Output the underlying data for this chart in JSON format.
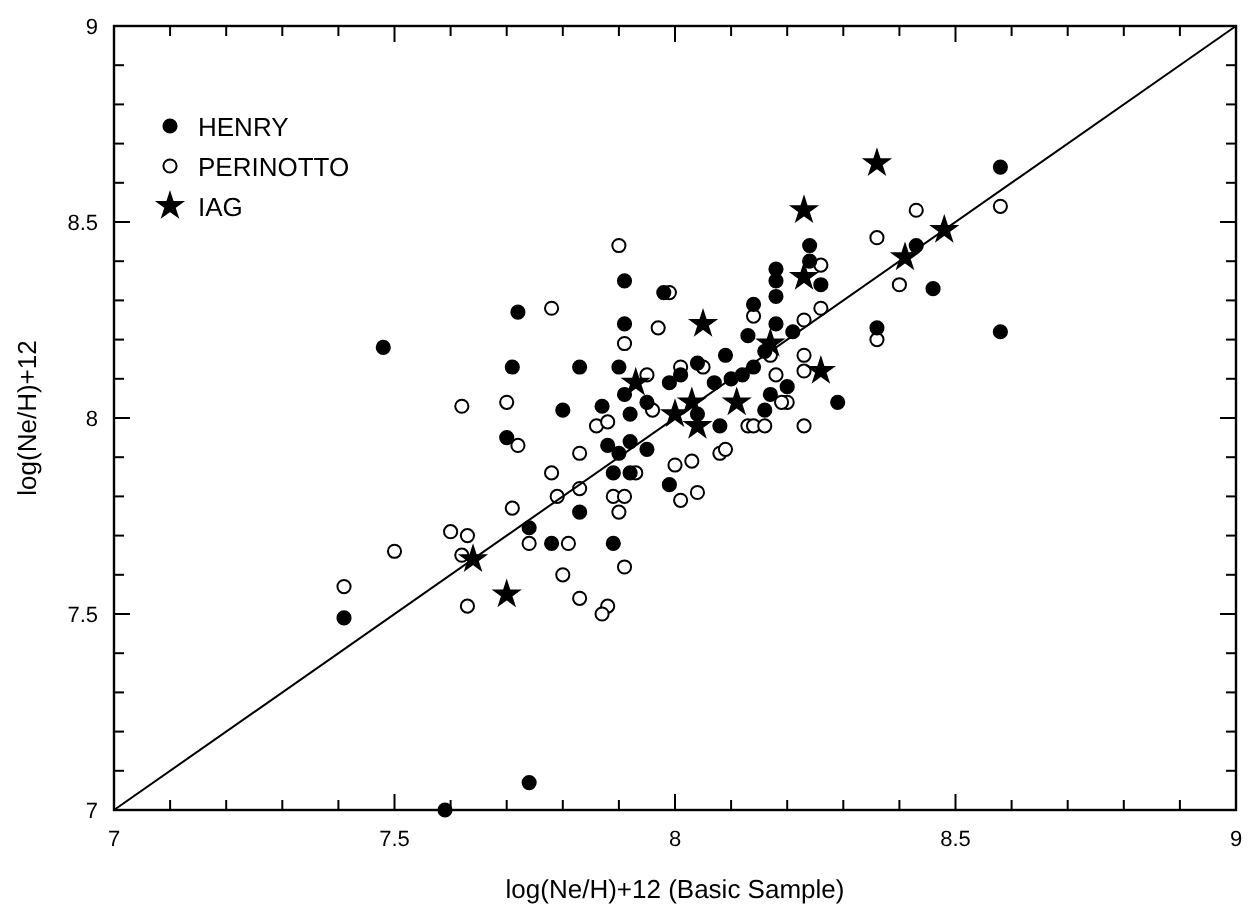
{
  "chart_data": {
    "type": "scatter",
    "xlabel": "log(Ne/H)+12 (Basic Sample)",
    "ylabel": "log(Ne/H)+12",
    "xlim": [
      7,
      9
    ],
    "ylim": [
      7,
      9
    ],
    "xticks": [
      7,
      {
        "value": 7.1,
        "label": null
      },
      {
        "value": 7.2,
        "label": null
      },
      {
        "value": 7.3,
        "label": null
      },
      {
        "value": 7.4,
        "label": null
      },
      7.5,
      {
        "value": 7.6,
        "label": null
      },
      {
        "value": 7.7,
        "label": null
      },
      {
        "value": 7.8,
        "label": null
      },
      {
        "value": 7.9,
        "label": null
      },
      8,
      {
        "value": 8.1,
        "label": null
      },
      {
        "value": 8.2,
        "label": null
      },
      {
        "value": 8.3,
        "label": null
      },
      {
        "value": 8.4,
        "label": null
      },
      8.5,
      {
        "value": 8.6,
        "label": null
      },
      {
        "value": 8.7,
        "label": null
      },
      {
        "value": 8.8,
        "label": null
      },
      {
        "value": 8.9,
        "label": null
      },
      9
    ],
    "yticks": [
      7,
      {
        "value": 7.1,
        "label": null
      },
      {
        "value": 7.2,
        "label": null
      },
      {
        "value": 7.3,
        "label": null
      },
      {
        "value": 7.4,
        "label": null
      },
      7.5,
      {
        "value": 7.6,
        "label": null
      },
      {
        "value": 7.7,
        "label": null
      },
      {
        "value": 7.8,
        "label": null
      },
      {
        "value": 7.9,
        "label": null
      },
      8,
      {
        "value": 8.1,
        "label": null
      },
      {
        "value": 8.2,
        "label": null
      },
      {
        "value": 8.3,
        "label": null
      },
      {
        "value": 8.4,
        "label": null
      },
      8.5,
      {
        "value": 8.6,
        "label": null
      },
      {
        "value": 8.7,
        "label": null
      },
      {
        "value": 8.8,
        "label": null
      },
      {
        "value": 8.9,
        "label": null
      },
      9
    ],
    "grid": false,
    "legend": "top left",
    "series": [
      {
        "name": "HENRY",
        "color": "#000000",
        "marker": "circle",
        "x": [
          7.48,
          7.41,
          7.59,
          7.74,
          8.58,
          8.58,
          8.46,
          7.72,
          7.91,
          7.98,
          7.91,
          7.71,
          7.83,
          7.9,
          7.91,
          7.8,
          7.87,
          7.95,
          7.92,
          7.99,
          8.01,
          8.04,
          7.7,
          7.88,
          7.92,
          7.9,
          7.95,
          7.89,
          7.92,
          7.99,
          7.83,
          7.74,
          7.78,
          7.89,
          8.08,
          8.04,
          8.07,
          8.09,
          8.14,
          8.13,
          8.1,
          8.24,
          8.24,
          8.26,
          8.18,
          8.18,
          8.18,
          8.18,
          8.21,
          8.16,
          8.12,
          8.14,
          8.43,
          8.36,
          8.29,
          8.17,
          8.2,
          8.16
        ],
        "values": [
          8.18,
          7.49,
          7.0,
          7.07,
          8.64,
          8.22,
          8.33,
          8.27,
          8.35,
          8.32,
          8.24,
          8.13,
          8.13,
          8.13,
          8.06,
          8.02,
          8.03,
          8.04,
          8.01,
          8.09,
          8.11,
          8.14,
          7.95,
          7.93,
          7.94,
          7.91,
          7.92,
          7.86,
          7.86,
          7.83,
          7.76,
          7.72,
          7.68,
          7.68,
          7.98,
          8.01,
          8.09,
          8.16,
          8.29,
          8.21,
          8.1,
          8.44,
          8.4,
          8.34,
          8.38,
          8.35,
          8.31,
          8.24,
          8.22,
          8.17,
          8.11,
          8.13,
          8.44,
          8.23,
          8.04,
          8.06,
          8.08,
          8.02
        ]
      },
      {
        "name": "PERINOTTO",
        "color": "#ffffff",
        "marker": "circle",
        "x": [
          7.9,
          7.78,
          7.99,
          7.97,
          7.91,
          7.95,
          7.7,
          7.62,
          7.86,
          7.88,
          7.96,
          8.01,
          7.72,
          7.83,
          7.78,
          7.83,
          7.79,
          7.89,
          7.91,
          7.93,
          7.9,
          8.0,
          8.03,
          8.04,
          8.01,
          8.08,
          7.71,
          7.74,
          7.81,
          7.91,
          7.8,
          7.83,
          7.88,
          7.87,
          7.63,
          7.63,
          8.14,
          8.13,
          8.05,
          7.41,
          7.5,
          7.6,
          7.62,
          8.58,
          8.43,
          8.36,
          8.4,
          8.36,
          8.26,
          8.26,
          8.23,
          8.17,
          8.23,
          8.23,
          8.18,
          8.14,
          8.16,
          8.2,
          8.19,
          8.23,
          8.09
        ],
        "values": [
          8.44,
          8.28,
          8.32,
          8.23,
          8.19,
          8.11,
          8.04,
          8.03,
          7.98,
          7.99,
          8.02,
          8.13,
          7.93,
          7.91,
          7.86,
          7.82,
          7.8,
          7.8,
          7.8,
          7.86,
          7.76,
          7.88,
          7.89,
          7.81,
          7.79,
          7.91,
          7.77,
          7.68,
          7.68,
          7.62,
          7.6,
          7.54,
          7.52,
          7.5,
          7.52,
          7.7,
          8.26,
          7.98,
          8.13,
          7.57,
          7.66,
          7.71,
          7.65,
          8.54,
          8.53,
          8.46,
          8.34,
          8.2,
          8.39,
          8.28,
          8.25,
          8.16,
          8.16,
          8.12,
          8.11,
          7.98,
          7.98,
          8.04,
          8.04,
          7.98,
          7.92
        ]
      },
      {
        "name": "IAG",
        "color": "#000000",
        "marker": "star",
        "x": [
          7.64,
          7.7,
          8.05,
          7.93,
          8.0,
          8.03,
          8.04,
          8.11,
          8.36,
          8.23,
          8.23,
          8.48,
          8.41,
          8.26,
          8.17
        ],
        "values": [
          7.64,
          7.55,
          8.24,
          8.09,
          8.01,
          8.04,
          7.98,
          8.04,
          8.65,
          8.53,
          8.36,
          8.48,
          8.41,
          8.12,
          8.19
        ]
      },
      {
        "type": "line",
        "color": "#000000",
        "marker": "none",
        "line_style": "solid",
        "x": [
          7,
          9
        ],
        "values": [
          7,
          9
        ]
      }
    ]
  }
}
